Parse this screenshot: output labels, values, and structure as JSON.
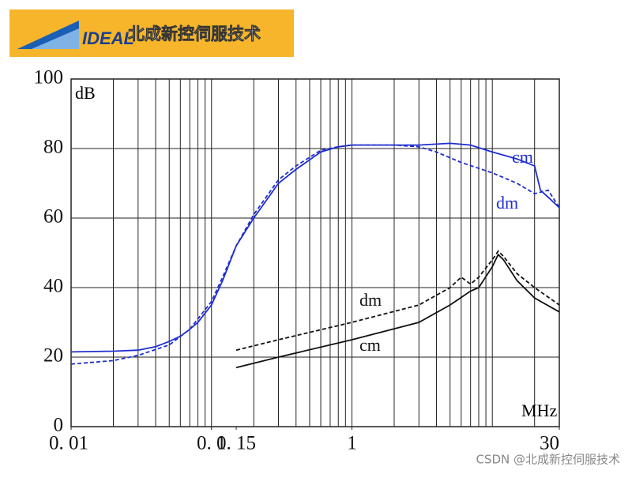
{
  "header": {
    "brand": "IDEAL",
    "company": "北成新控伺服技术"
  },
  "watermark": "CSDN @北成新控伺服技术",
  "chart_data": {
    "type": "line",
    "ylabel": "dB",
    "xlabel": "MHz",
    "xscale": "log",
    "grid": true,
    "xlim": [
      0.01,
      30
    ],
    "ylim": [
      0,
      100
    ],
    "yticks": [
      0,
      20,
      40,
      60,
      80,
      100
    ],
    "xticks": [
      {
        "value": 0.01,
        "label": "0. 01"
      },
      {
        "value": 0.1,
        "label": "0. 1"
      },
      {
        "value": 0.15,
        "label": "0. 15"
      },
      1,
      30
    ],
    "xgrid": [
      0.01,
      0.02,
      0.03,
      0.04,
      0.05,
      0.06,
      0.07,
      0.08,
      0.09,
      0.1,
      0.2,
      0.3,
      0.4,
      0.5,
      0.6,
      0.7,
      0.8,
      0.9,
      1,
      2,
      3,
      4,
      5,
      6,
      7,
      8,
      9,
      10,
      20,
      30
    ],
    "series": [
      {
        "name": "cm",
        "color": "#1f2fd0",
        "dashed": false,
        "x": [
          0.01,
          0.02,
          0.03,
          0.04,
          0.05,
          0.06,
          0.07,
          0.08,
          0.1,
          0.12,
          0.15,
          0.2,
          0.3,
          0.4,
          0.6,
          0.8,
          1,
          2,
          3,
          5,
          7,
          10,
          15,
          20,
          22,
          25,
          30
        ],
        "values": [
          21.5,
          21.7,
          22,
          23,
          24.5,
          26,
          28,
          30,
          35,
          42,
          52,
          60,
          70,
          74,
          79,
          80.5,
          81,
          81,
          81,
          81.5,
          81,
          79,
          77,
          75,
          68,
          66,
          63
        ]
      },
      {
        "name": "dm",
        "color": "#1f2fd0",
        "dashed": true,
        "x": [
          0.01,
          0.02,
          0.03,
          0.05,
          0.07,
          0.1,
          0.12,
          0.15,
          0.2,
          0.3,
          0.4,
          0.6,
          0.8,
          1,
          2,
          3,
          4,
          6,
          10,
          15,
          20,
          25,
          30
        ],
        "values": [
          18,
          19,
          20.5,
          23.5,
          28,
          36,
          43,
          52,
          61,
          71,
          75,
          79.5,
          80.5,
          81,
          81,
          80.5,
          79,
          76,
          73,
          70,
          67,
          68,
          63
        ]
      },
      {
        "name": "dm",
        "color": "#111111",
        "dashed": true,
        "x": [
          0.15,
          0.3,
          1,
          3,
          5,
          6,
          7,
          8,
          10,
          11,
          12,
          15,
          20,
          30
        ],
        "values": [
          22,
          25,
          30,
          35,
          40,
          43,
          41,
          43,
          48,
          50.5,
          49,
          44,
          40,
          35
        ]
      },
      {
        "name": "cm",
        "color": "#111111",
        "dashed": false,
        "x": [
          0.15,
          0.3,
          1,
          3,
          5,
          7,
          8,
          10,
          11,
          12,
          15,
          20,
          30
        ],
        "values": [
          17,
          20,
          25,
          30,
          35,
          39,
          40,
          46,
          49.5,
          48,
          42,
          37,
          33
        ]
      }
    ]
  }
}
